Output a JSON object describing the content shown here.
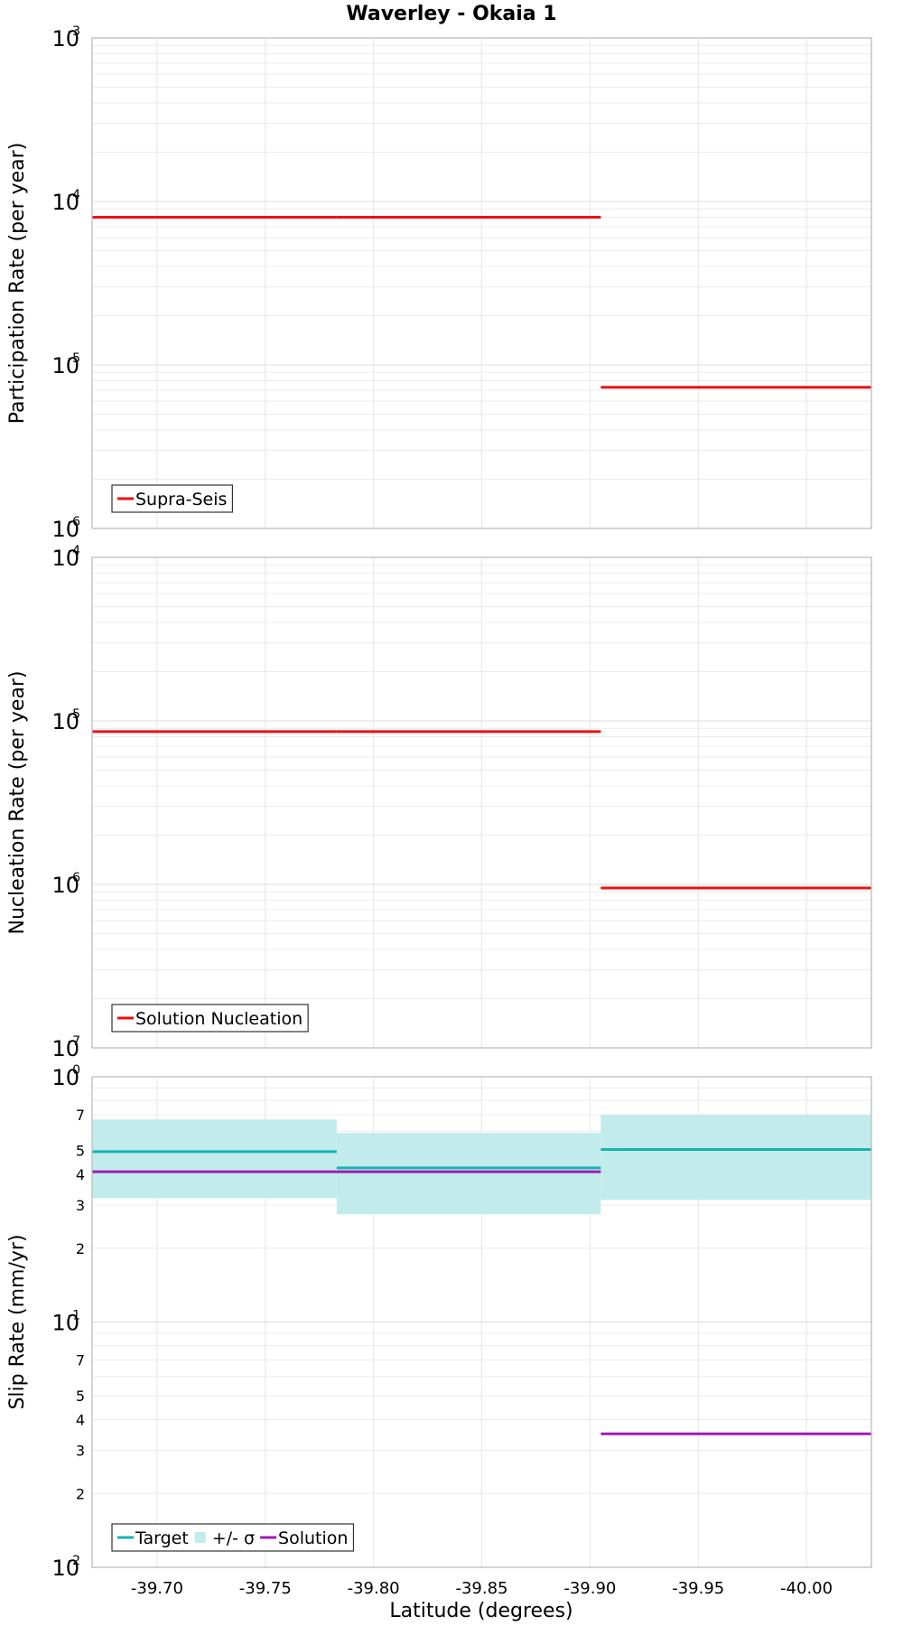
{
  "title": "Waverley - Okaia 1",
  "xlabel": "Latitude (degrees)",
  "x_ticks": [
    "-39.70",
    "-39.75",
    "-39.80",
    "-39.85",
    "-39.90",
    "-39.95",
    "-40.00"
  ],
  "colors": {
    "supra_seis": "#ee1111",
    "target": "#17b2b2",
    "sigma_band": "#c2eceb",
    "solution": "#a11ab5"
  },
  "chart_data": [
    {
      "type": "line",
      "xlim": [
        -39.67,
        -40.03
      ],
      "ylabel": "Participation Rate (per year)",
      "yscale": "log",
      "ylim": [
        1e-06,
        0.001
      ],
      "y_ticks": [
        {
          "base": "10",
          "exp": "-3"
        },
        {
          "base": "10",
          "exp": "-4"
        },
        {
          "base": "10",
          "exp": "-5"
        },
        {
          "base": "10",
          "exp": "-6"
        }
      ],
      "grid": true,
      "legend_position": "bottom-left",
      "legend": [
        {
          "label": "Supra-Seis",
          "kind": "line",
          "color_key": "supra_seis"
        }
      ],
      "series": [
        {
          "name": "Supra-Seis",
          "color_key": "supra_seis",
          "segments": [
            {
              "x": [
                -39.67,
                -39.783
              ],
              "y": 8e-05
            },
            {
              "x": [
                -39.783,
                -39.905
              ],
              "y": 8e-05
            },
            {
              "x": [
                -39.905,
                -40.03
              ],
              "y": 7.3e-06
            }
          ]
        }
      ]
    },
    {
      "type": "line",
      "xlim": [
        -39.67,
        -40.03
      ],
      "ylabel": "Nucleation Rate (per year)",
      "yscale": "log",
      "ylim": [
        1e-07,
        0.0001
      ],
      "y_ticks": [
        {
          "base": "10",
          "exp": "-4"
        },
        {
          "base": "10",
          "exp": "-5"
        },
        {
          "base": "10",
          "exp": "-6"
        },
        {
          "base": "10",
          "exp": "-7"
        }
      ],
      "grid": true,
      "legend_position": "bottom-left",
      "legend": [
        {
          "label": "Solution Nucleation",
          "kind": "line",
          "color_key": "supra_seis"
        }
      ],
      "series": [
        {
          "name": "Solution Nucleation",
          "color_key": "supra_seis",
          "segments": [
            {
              "x": [
                -39.67,
                -39.783
              ],
              "y": 8.6e-06
            },
            {
              "x": [
                -39.783,
                -39.905
              ],
              "y": 8.6e-06
            },
            {
              "x": [
                -39.905,
                -40.03
              ],
              "y": 9.5e-07
            }
          ]
        }
      ]
    },
    {
      "type": "line",
      "xlim": [
        -39.67,
        -40.03
      ],
      "ylabel": "Slip Rate (mm/yr)",
      "yscale": "log",
      "ylim": [
        0.01,
        1
      ],
      "y_ticks": [
        {
          "base": "10",
          "exp": "0"
        },
        {
          "base": "10",
          "exp": "-1"
        },
        {
          "base": "10",
          "exp": "-2"
        }
      ],
      "y_minor_labels": [
        {
          "value": 0.7,
          "label": "7"
        },
        {
          "value": 0.5,
          "label": "5"
        },
        {
          "value": 0.4,
          "label": "4"
        },
        {
          "value": 0.3,
          "label": "3"
        },
        {
          "value": 0.2,
          "label": "2"
        },
        {
          "value": 0.07,
          "label": "7"
        },
        {
          "value": 0.05,
          "label": "5"
        },
        {
          "value": 0.04,
          "label": "4"
        },
        {
          "value": 0.03,
          "label": "3"
        },
        {
          "value": 0.02,
          "label": "2"
        }
      ],
      "grid": true,
      "legend_position": "bottom-left",
      "legend": [
        {
          "label": "Target",
          "kind": "line",
          "color_key": "target"
        },
        {
          "label": "+/- σ",
          "kind": "box",
          "color_key": "sigma_band"
        },
        {
          "label": "Solution",
          "kind": "line",
          "color_key": "solution"
        }
      ],
      "bands": [
        {
          "name": "+/- σ",
          "color_key": "sigma_band",
          "segments": [
            {
              "x": [
                -39.67,
                -39.783
              ],
              "low": 0.32,
              "high": 0.67
            },
            {
              "x": [
                -39.783,
                -39.905
              ],
              "low": 0.275,
              "high": 0.59
            },
            {
              "x": [
                -39.905,
                -40.03
              ],
              "low": 0.315,
              "high": 0.7
            }
          ]
        }
      ],
      "series": [
        {
          "name": "Target",
          "color_key": "target",
          "segments": [
            {
              "x": [
                -39.67,
                -39.783
              ],
              "y": 0.495
            },
            {
              "x": [
                -39.783,
                -39.905
              ],
              "y": 0.425
            },
            {
              "x": [
                -39.905,
                -40.03
              ],
              "y": 0.505
            }
          ]
        },
        {
          "name": "Solution",
          "color_key": "solution",
          "segments": [
            {
              "x": [
                -39.67,
                -39.783
              ],
              "y": 0.41
            },
            {
              "x": [
                -39.783,
                -39.905
              ],
              "y": 0.41
            },
            {
              "x": [
                -39.905,
                -40.03
              ],
              "y": 0.035
            }
          ]
        }
      ]
    }
  ]
}
